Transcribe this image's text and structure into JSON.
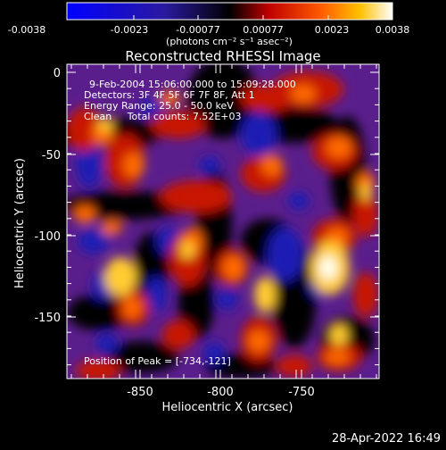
{
  "colorbar": {
    "tick_labels": [
      "-0.0038",
      "-0.0023",
      "-0.00077",
      "0.00077",
      "0.0023",
      "0.0038"
    ],
    "unit_label": "(photons cm⁻² s⁻¹ asec⁻²)",
    "range": [
      -0.0038,
      0.0038
    ]
  },
  "plot": {
    "title": "Reconstructed RHESSI Image",
    "xlabel": "Heliocentric X (arcsec)",
    "ylabel": "Heliocentric Y (arcsec)",
    "x_ticks": [
      "-850",
      "-800",
      "-750"
    ],
    "y_ticks": [
      "0",
      "-50",
      "-100",
      "-150"
    ],
    "xlim": [
      -895,
      -710
    ],
    "ylim": [
      -188,
      2
    ]
  },
  "annotations": {
    "line1": "9-Feb-2004 15:06:00.000 to 15:09:28.000",
    "line2": "Detectors: 3F 4F 5F 6F 7F 8F, Att 1",
    "line3": "Energy Range: 25.0 - 50.0 keV",
    "line4": "Clean     Total counts: 7.52E+03",
    "peak": "Position of Peak = [-734,-121]"
  },
  "footer": {
    "timestamp": "28-Apr-2022 16:49"
  },
  "colors": {
    "background": "#000000",
    "foreground": "#ffffff"
  }
}
